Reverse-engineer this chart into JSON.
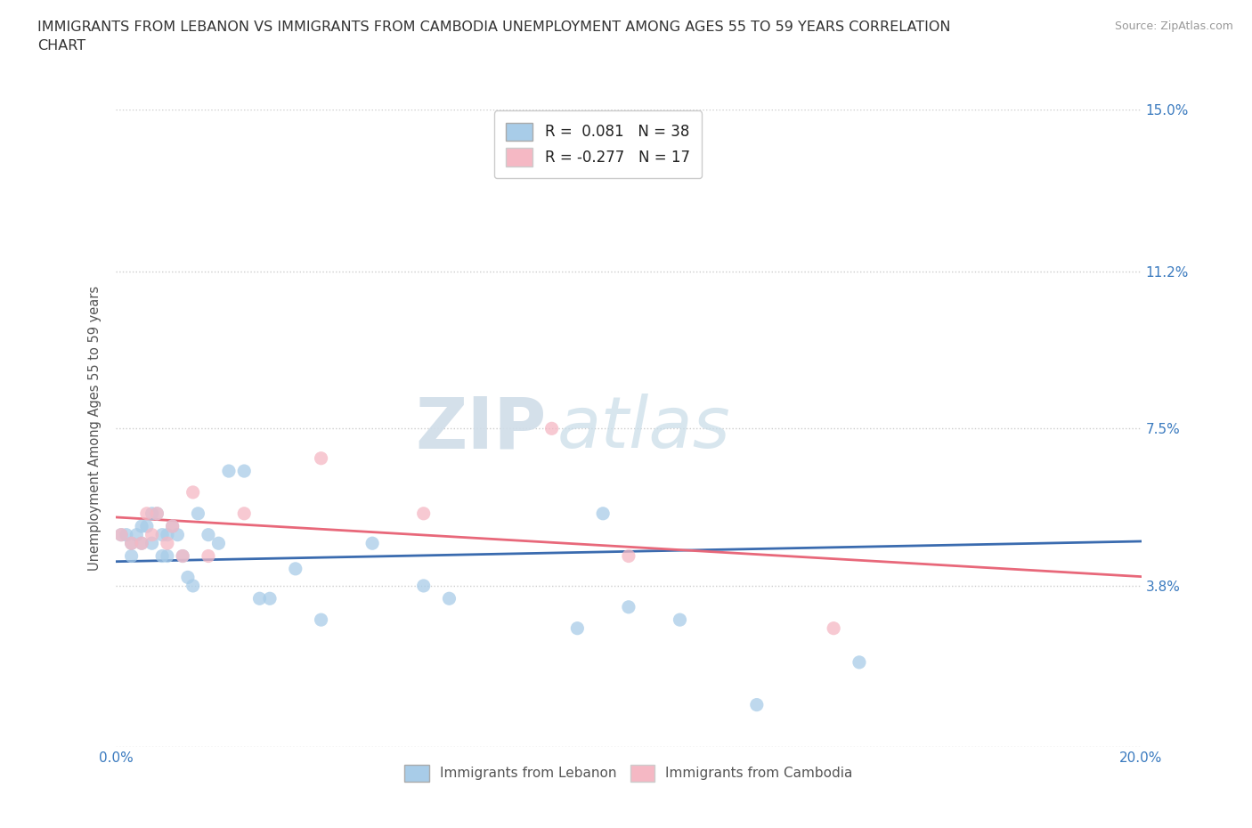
{
  "title": "IMMIGRANTS FROM LEBANON VS IMMIGRANTS FROM CAMBODIA UNEMPLOYMENT AMONG AGES 55 TO 59 YEARS CORRELATION\nCHART",
  "source": "Source: ZipAtlas.com",
  "ylabel": "Unemployment Among Ages 55 to 59 years",
  "xlim": [
    0.0,
    0.2
  ],
  "ylim": [
    0.0,
    0.15
  ],
  "xticks": [
    0.0,
    0.04,
    0.08,
    0.12,
    0.16,
    0.2
  ],
  "xticklabels": [
    "0.0%",
    "",
    "",
    "",
    "",
    "20.0%"
  ],
  "yticks": [
    0.0,
    0.038,
    0.075,
    0.112,
    0.15
  ],
  "yticklabels": [
    "",
    "3.8%",
    "7.5%",
    "11.2%",
    "15.0%"
  ],
  "lebanon_color": "#a8cce8",
  "cambodia_color": "#f5b8c4",
  "lebanon_line_color": "#3a6baf",
  "cambodia_line_color": "#e8687a",
  "R_lebanon": 0.081,
  "N_lebanon": 38,
  "R_cambodia": -0.277,
  "N_cambodia": 17,
  "watermark_zip": "ZIP",
  "watermark_atlas": "atlas",
  "lebanon_x": [
    0.001,
    0.002,
    0.003,
    0.003,
    0.004,
    0.005,
    0.005,
    0.006,
    0.007,
    0.007,
    0.008,
    0.009,
    0.009,
    0.01,
    0.01,
    0.011,
    0.012,
    0.013,
    0.014,
    0.015,
    0.016,
    0.018,
    0.02,
    0.022,
    0.025,
    0.028,
    0.03,
    0.035,
    0.04,
    0.05,
    0.06,
    0.065,
    0.09,
    0.095,
    0.1,
    0.11,
    0.125,
    0.145
  ],
  "lebanon_y": [
    0.05,
    0.05,
    0.048,
    0.045,
    0.05,
    0.052,
    0.048,
    0.052,
    0.055,
    0.048,
    0.055,
    0.05,
    0.045,
    0.05,
    0.045,
    0.052,
    0.05,
    0.045,
    0.04,
    0.038,
    0.055,
    0.05,
    0.048,
    0.065,
    0.065,
    0.035,
    0.035,
    0.042,
    0.03,
    0.048,
    0.038,
    0.035,
    0.028,
    0.055,
    0.033,
    0.03,
    0.01,
    0.02
  ],
  "cambodia_x": [
    0.001,
    0.003,
    0.005,
    0.006,
    0.007,
    0.008,
    0.01,
    0.011,
    0.013,
    0.015,
    0.018,
    0.025,
    0.04,
    0.06,
    0.085,
    0.1,
    0.14
  ],
  "cambodia_y": [
    0.05,
    0.048,
    0.048,
    0.055,
    0.05,
    0.055,
    0.048,
    0.052,
    0.045,
    0.06,
    0.045,
    0.055,
    0.068,
    0.055,
    0.075,
    0.045,
    0.028
  ]
}
